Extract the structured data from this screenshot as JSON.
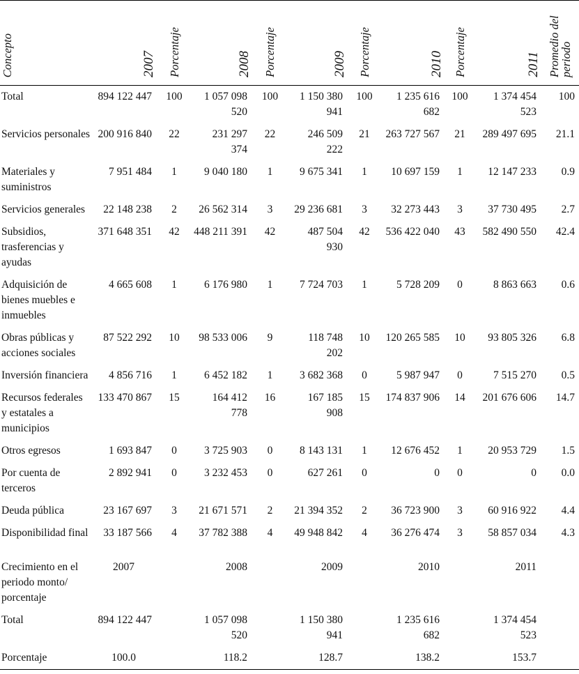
{
  "header": {
    "concepto": "Concepto",
    "columns": [
      "2007",
      "Porcentaje",
      "2008",
      "Porcentaje",
      "2009",
      "Porcentaje",
      "2010",
      "Porcentaje",
      "2011",
      "Promedio del periodo"
    ]
  },
  "table": {
    "rows": [
      [
        "Total",
        "894 122 447",
        "100",
        "1 057 098 520",
        "100",
        "1 150 380 941",
        "100",
        "1 235 616 682",
        "100",
        "1 374 454 523",
        "100"
      ],
      [
        "Servicios personales",
        "200 916 840",
        "22",
        "231 297 374",
        "22",
        "246 509 222",
        "21",
        "263 727 567",
        "21",
        "289 497 695",
        "21.1"
      ],
      [
        "Materiales y suministros",
        "7 951 484",
        "1",
        "9 040 180",
        "1",
        "9 675 341",
        "1",
        "10 697 159",
        "1",
        "12 147 233",
        "0.9"
      ],
      [
        "Servicios generales",
        "22 148 238",
        "2",
        "26 562 314",
        "3",
        "29 236 681",
        "3",
        "32 273 443",
        "3",
        "37 730 495",
        "2.7"
      ],
      [
        "Subsidios, trasferencias y ayudas",
        "371 648 351",
        "42",
        "448 211 391",
        "42",
        "487 504 930",
        "42",
        "536 422 040",
        "43",
        "582 490 550",
        "42.4"
      ],
      [
        "Adquisición de bienes muebles e inmuebles",
        "4 665 608",
        "1",
        "6 176 980",
        "1",
        "7 724 703",
        "1",
        "5 728 209",
        "0",
        "8 863 663",
        "0.6"
      ],
      [
        "Obras públicas y acciones sociales",
        "87 522 292",
        "10",
        "98 533 006",
        "9",
        "118 748 202",
        "10",
        "120 265 585",
        "10",
        "93 805 326",
        "6.8"
      ],
      [
        "Inversión financiera",
        "4 856 716",
        "1",
        "6 452 182",
        "1",
        "3 682 368",
        "0",
        "5 987 947",
        "0",
        "7 515 270",
        "0.5"
      ],
      [
        "Recursos federales y estatales a municipios",
        "133 470 867",
        "15",
        "164 412 778",
        "16",
        "167 185 908",
        "15",
        "174 837 906",
        "14",
        "201 676 606",
        "14.7"
      ],
      [
        "Otros egresos",
        "1 693 847",
        "0",
        "3 725 903",
        "0",
        "8 143 131",
        "1",
        "12 676 452",
        "1",
        "20 953 729",
        "1.5"
      ],
      [
        "Por cuenta de terceros",
        "2 892 941",
        "0",
        "3 232 453",
        "0",
        "627 261",
        "0",
        "0",
        "0",
        "0",
        "0.0"
      ],
      [
        "Deuda pública",
        "23 167 697",
        "3",
        "21 671 571",
        "2",
        "21 394 352",
        "2",
        "36 723 900",
        "3",
        "60 916 922",
        "4.4"
      ],
      [
        "Disponibilidad final",
        "33 187 566",
        "4",
        "37 782 388",
        "4",
        "49 948 842",
        "4",
        "36 276 474",
        "3",
        "58 857 034",
        "4.3"
      ]
    ]
  },
  "growth": {
    "label": "Crecimiento en el periodo monto/ porcentaje",
    "years": [
      "2007",
      "2008",
      "2009",
      "2010",
      "2011"
    ],
    "rows": [
      [
        "Total",
        "894 122 447",
        "1 057 098 520",
        "1 150 380 941",
        "1 235 616 682",
        "1 374 454 523"
      ],
      [
        "Porcentaje",
        "100.0",
        "118.2",
        "128.7",
        "138.2",
        "153.7"
      ]
    ]
  }
}
